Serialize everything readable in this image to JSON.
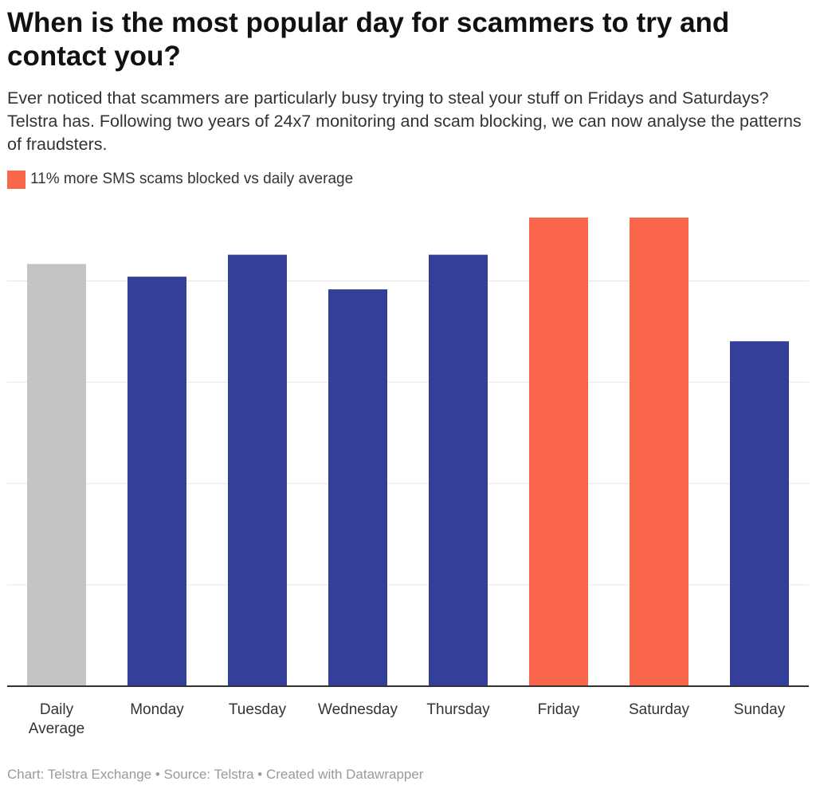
{
  "header": {
    "title": "When is the most popular day for scammers to try and contact you?",
    "subtitle": "Ever noticed that scammers are particularly busy trying to steal your stuff on Fridays and Saturdays? Telstra has. Following two years of 24x7 monitoring and scam blocking, we can now analyse the patterns of fraudsters."
  },
  "legend": {
    "label": "11% more SMS scams blocked vs daily average",
    "color": "#fa664b"
  },
  "colors": {
    "average": "#c4c4c4",
    "weekday": "#333f99",
    "highlight": "#fa664b",
    "grid": "#e6e6e6",
    "axis": "#333333"
  },
  "chart_data": {
    "type": "bar",
    "categories": [
      "Daily Average",
      "Monday",
      "Tuesday",
      "Wednesday",
      "Thursday",
      "Friday",
      "Saturday",
      "Sunday"
    ],
    "category_lines": [
      [
        "Daily",
        "Average"
      ],
      [
        "Monday"
      ],
      [
        "Tuesday"
      ],
      [
        "Wednesday"
      ],
      [
        "Thursday"
      ],
      [
        "Friday"
      ],
      [
        "Saturday"
      ],
      [
        "Sunday"
      ]
    ],
    "values": [
      100,
      97,
      102.2,
      94,
      102.2,
      111,
      111,
      81.7
    ],
    "color_roles": [
      "average",
      "weekday",
      "weekday",
      "weekday",
      "weekday",
      "highlight",
      "highlight",
      "weekday"
    ],
    "ylim": [
      0,
      111
    ],
    "gridlines": [
      24,
      48,
      72,
      96
    ],
    "grid": true,
    "legend_position": "top-left"
  },
  "footer": {
    "credit": "Chart: Telstra Exchange • Source: Telstra • Created with Datawrapper"
  }
}
